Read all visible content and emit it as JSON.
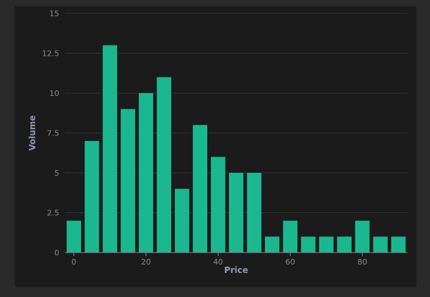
{
  "chart_data": {
    "type": "bar",
    "title": "",
    "xlabel": "Price",
    "ylabel": "Volume",
    "x": [
      0,
      5,
      10,
      15,
      20,
      25,
      30,
      35,
      40,
      45,
      50,
      55,
      60,
      65,
      70,
      75,
      80,
      85,
      90
    ],
    "values": [
      2,
      7,
      13,
      9,
      10,
      11,
      4,
      8,
      6,
      5,
      5,
      1,
      2,
      1,
      1,
      1,
      2,
      1,
      1
    ],
    "bin_width": 5,
    "xlim": [
      -2.5,
      92.5
    ],
    "ylim": [
      0,
      15
    ],
    "x_ticks": [
      0,
      20,
      40,
      60,
      80
    ],
    "x_tick_labels": [
      "0",
      "20",
      "40",
      "60",
      "80"
    ],
    "y_ticks": [
      0,
      2.5,
      5,
      7.5,
      10,
      12.5,
      15
    ],
    "y_tick_labels": [
      "0",
      "2.5",
      "5",
      "7.5",
      "10",
      "12.5",
      "15"
    ],
    "grid": true,
    "legend": "none",
    "colors": {
      "bar": "#1bb890",
      "background": "#1b1b1b",
      "page": "#2a2a2a"
    }
  }
}
